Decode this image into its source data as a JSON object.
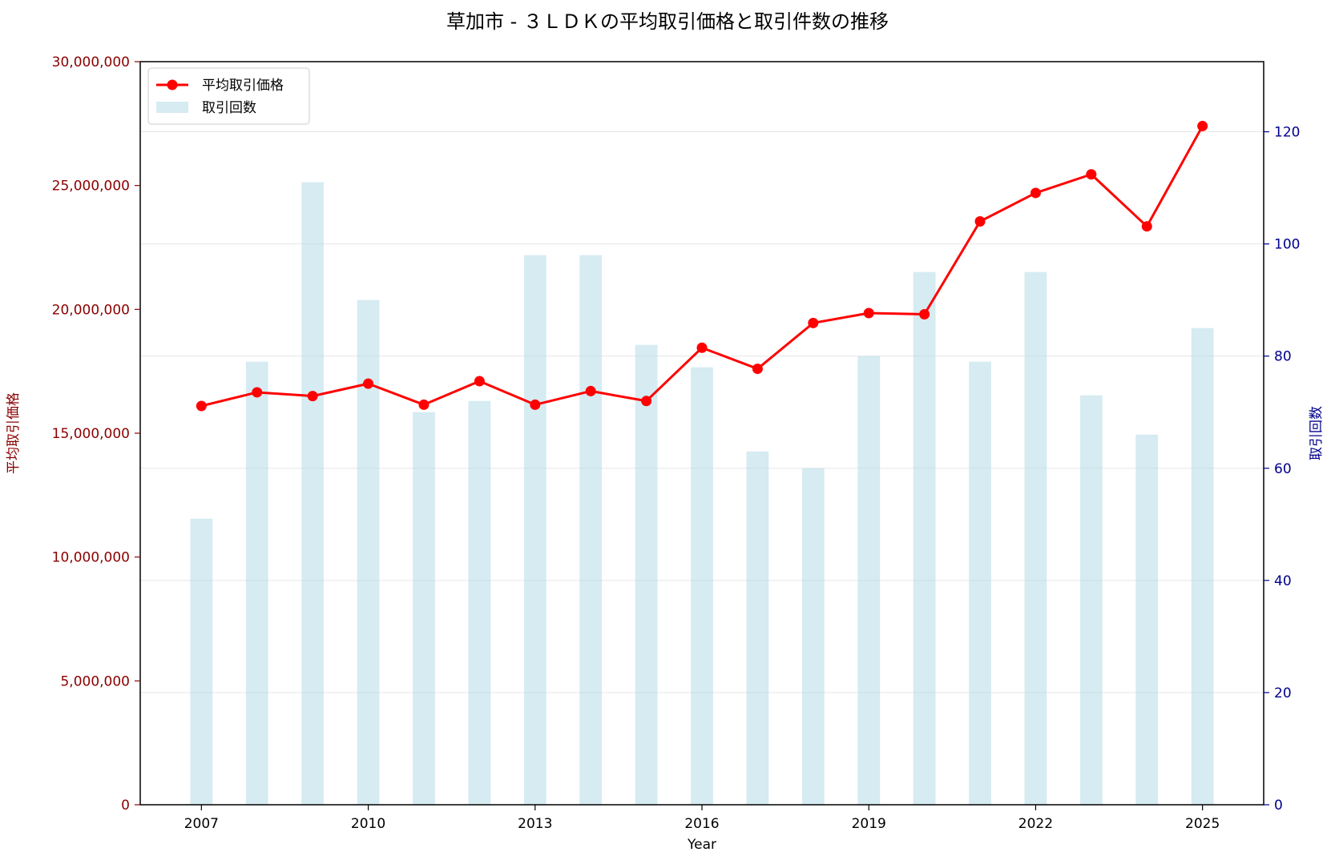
{
  "chart_data": {
    "type": "bar+line",
    "title": "草加市 - ３ＬＤＫの平均取引価格と取引件数の推移",
    "xlabel": "Year",
    "ylabel_left": "平均取引価格",
    "ylabel_right": "取引回数",
    "x": [
      2007,
      2008,
      2009,
      2010,
      2011,
      2012,
      2013,
      2014,
      2015,
      2016,
      2017,
      2018,
      2019,
      2020,
      2021,
      2022,
      2023,
      2024,
      2025
    ],
    "x_ticks": [
      "2007",
      "2010",
      "2013",
      "2016",
      "2019",
      "2022",
      "2025"
    ],
    "xlim": [
      2005.9,
      2026.1
    ],
    "ylim_left": [
      0,
      30000000
    ],
    "ylim_right": [
      0,
      132.5
    ],
    "y_ticks_left": [
      "0",
      "5,000,000",
      "10,000,000",
      "15,000,000",
      "20,000,000",
      "25,000,000",
      "30,000,000"
    ],
    "y_ticks_right": [
      "0",
      "20",
      "40",
      "60",
      "80",
      "100",
      "120"
    ],
    "grid": true,
    "legend_position": "top-left",
    "series": [
      {
        "name": "平均取引価格",
        "kind": "line",
        "axis": "left",
        "color": "#ff0000",
        "values": [
          16100000,
          16650000,
          16500000,
          17000000,
          16150000,
          17100000,
          16150000,
          16700000,
          16300000,
          18450000,
          17600000,
          19450000,
          19850000,
          19800000,
          23550000,
          24700000,
          25450000,
          23350000,
          27400000
        ]
      },
      {
        "name": "取引回数",
        "kind": "bar",
        "axis": "right",
        "color": "#add8e6",
        "values": [
          51,
          79,
          111,
          90,
          70,
          72,
          98,
          98,
          82,
          78,
          63,
          60,
          80,
          95,
          79,
          95,
          73,
          66,
          85
        ]
      }
    ],
    "colors": {
      "left_axis": "#8b0000",
      "right_axis": "#00008b",
      "grid": "#e6e6e6"
    }
  }
}
